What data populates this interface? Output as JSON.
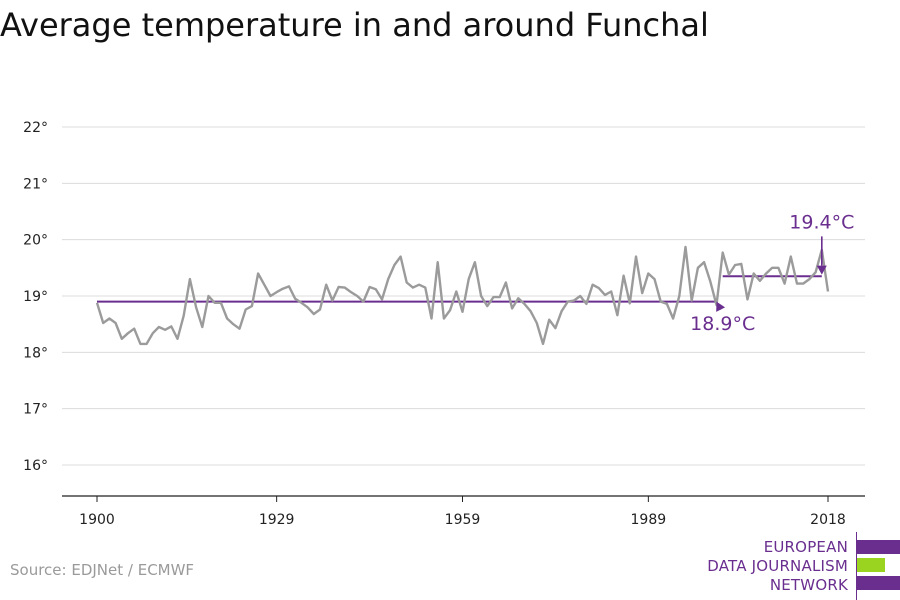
{
  "title": "Average temperature in and around Funchal",
  "source": "Source: EDJNet / ECMWF",
  "logo": {
    "lines": [
      "EUROPEAN",
      "DATA JOURNALISM",
      "NETWORK"
    ],
    "colors": [
      "#6a2e8f",
      "#9bd321",
      "#6a2e8f"
    ]
  },
  "colors": {
    "series": "#9b9b9b",
    "average": "#6a2e8f",
    "grid": "#dcdcdc",
    "axis": "#222222"
  },
  "chart_data": {
    "type": "line",
    "title": "Average temperature in and around Funchal",
    "xlabel": "",
    "ylabel": "",
    "xlim": [
      1900,
      2018
    ],
    "ylim": [
      15.4,
      22.1
    ],
    "x_ticks": [
      1900,
      1929,
      1959,
      1989,
      2018
    ],
    "x_tick_labels": [
      "1900",
      "1929",
      "1959",
      "1989",
      "2018"
    ],
    "y_ticks": [
      16,
      17,
      18,
      19,
      20,
      21,
      22
    ],
    "y_tick_labels": [
      "16°",
      "17°",
      "18°",
      "19°",
      "20°",
      "21°",
      "22°"
    ],
    "grid": true,
    "series": [
      {
        "x": [
          1900,
          1901,
          1902,
          1903,
          1904,
          1905,
          1906,
          1907,
          1908,
          1909,
          1910,
          1911,
          1912,
          1913,
          1914,
          1915,
          1916,
          1917,
          1918,
          1919,
          1920,
          1921,
          1922,
          1923,
          1924,
          1925,
          1926,
          1927,
          1928,
          1929,
          1930,
          1931,
          1932,
          1933,
          1934,
          1935,
          1936,
          1937,
          1938,
          1939,
          1940,
          1941,
          1942,
          1943,
          1944,
          1945,
          1946,
          1947,
          1948,
          1949,
          1950,
          1951,
          1952,
          1953,
          1954,
          1955,
          1956,
          1957,
          1958,
          1959,
          1960,
          1961,
          1962,
          1963,
          1964,
          1965,
          1966,
          1967,
          1968,
          1969,
          1970,
          1971,
          1972,
          1973,
          1974,
          1975,
          1976,
          1977,
          1978,
          1979,
          1980,
          1981,
          1982,
          1983,
          1984,
          1985,
          1986,
          1987,
          1988,
          1989,
          1990,
          1991,
          1992,
          1993,
          1994,
          1995,
          1996,
          1997,
          1998,
          1999,
          2000,
          2001,
          2002,
          2003,
          2004,
          2005,
          2006,
          2007,
          2008,
          2009,
          2010,
          2011,
          2012,
          2013,
          2014,
          2015,
          2016,
          2017,
          2018
        ],
        "values": [
          18.88,
          18.52,
          18.6,
          18.52,
          18.24,
          18.34,
          18.42,
          18.15,
          18.15,
          18.34,
          18.45,
          18.4,
          18.46,
          18.24,
          18.65,
          19.3,
          18.8,
          18.45,
          19.0,
          18.88,
          18.88,
          18.6,
          18.5,
          18.42,
          18.76,
          18.82,
          19.4,
          19.2,
          19.0,
          19.07,
          19.13,
          19.17,
          18.95,
          18.88,
          18.8,
          18.68,
          18.76,
          19.2,
          18.92,
          19.16,
          19.15,
          19.07,
          19.0,
          18.9,
          19.16,
          19.12,
          18.94,
          19.3,
          19.55,
          19.7,
          19.24,
          19.15,
          19.2,
          19.15,
          18.6,
          19.6,
          18.6,
          18.75,
          19.08,
          18.72,
          19.3,
          19.6,
          19.0,
          18.82,
          18.98,
          18.98,
          19.24,
          18.78,
          18.96,
          18.86,
          18.73,
          18.52,
          18.15,
          18.58,
          18.43,
          18.73,
          18.9,
          18.92,
          19.0,
          18.86,
          19.2,
          19.14,
          19.02,
          19.08,
          18.66,
          19.36,
          18.87,
          19.7,
          19.05,
          19.4,
          19.3,
          18.9,
          18.86,
          18.6,
          19.0,
          19.87,
          18.92,
          19.5,
          19.6,
          19.26,
          18.84,
          19.77,
          19.38,
          19.55,
          19.57,
          18.94,
          19.4,
          19.27,
          19.4,
          19.5,
          19.5,
          19.22,
          19.7,
          19.22,
          19.22,
          19.3,
          19.42,
          19.82,
          19.08
        ]
      }
    ],
    "averages": [
      {
        "from": 1900,
        "to": 2000,
        "value": 18.9
      },
      {
        "from": 2001,
        "to": 2017,
        "value": 19.35
      }
    ],
    "annotations": [
      {
        "text": "18.9°C",
        "x": 2000,
        "y": 18.9,
        "label_x": 2001,
        "label_y": 18.4
      },
      {
        "text": "19.4°C",
        "x": 2017,
        "y": 19.38,
        "label_x": 2017,
        "label_y": 20.2
      }
    ]
  }
}
